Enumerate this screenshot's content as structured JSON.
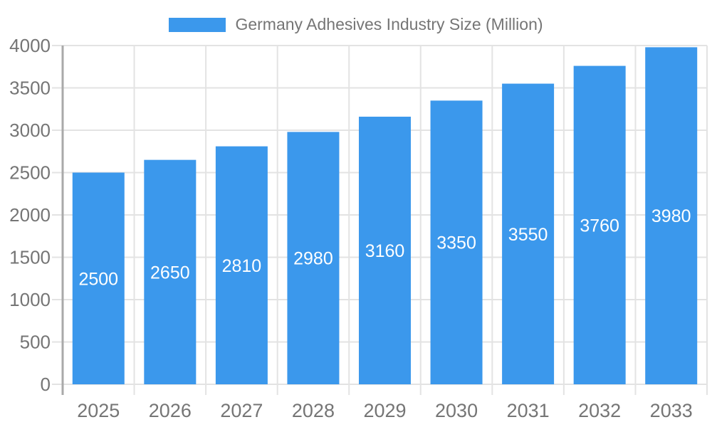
{
  "legend": {
    "label": "Germany Adhesives Industry Size (Million)",
    "position": "top"
  },
  "chart_data": {
    "type": "bar",
    "title": "Germany Adhesives Industry Size (Million)",
    "series_name": "Germany Adhesives Industry Size (Million)",
    "categories": [
      "2025",
      "2026",
      "2027",
      "2028",
      "2029",
      "2030",
      "2031",
      "2032",
      "2033"
    ],
    "values": [
      2500,
      2650,
      2810,
      2980,
      3160,
      3350,
      3550,
      3760,
      3980
    ],
    "xlabel": "",
    "ylabel": "",
    "ylim": [
      0,
      4000
    ],
    "ytick_step": 500,
    "ytick_labels": [
      "0",
      "500",
      "1000",
      "1500",
      "2000",
      "2500",
      "3000",
      "3500",
      "4000"
    ],
    "grid": true,
    "legend_position": "top",
    "bar_value_labels_visible": true,
    "colors": {
      "bar": "#3B98EC",
      "grid": "#E3E3E3",
      "axis": "#A9A9A9",
      "tick_label": "#757575",
      "bar_label": "#FFFFFF",
      "legend_text": "#757575",
      "background": "#FFFFFF"
    }
  }
}
